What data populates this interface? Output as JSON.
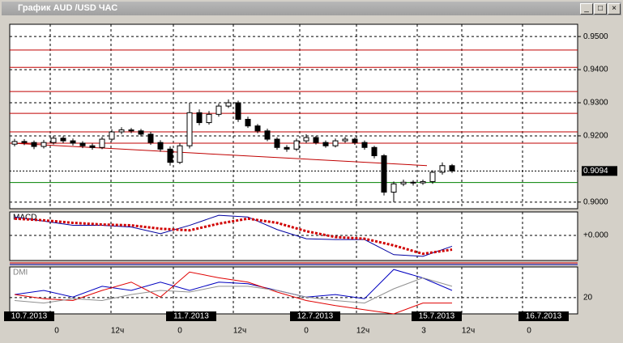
{
  "window_title": "График AUD /USD ЧАС",
  "chart_data": {
    "type": "candlestick",
    "open": [
      0.9175,
      0.9183,
      0.918,
      0.9168,
      0.918,
      0.9193,
      0.9185,
      0.9178,
      0.917,
      0.9165,
      0.919,
      0.9212,
      0.9218,
      0.9215,
      0.9205,
      0.918,
      0.916,
      0.912,
      0.917,
      0.927,
      0.924,
      0.9265,
      0.929,
      0.93,
      0.925,
      0.923,
      0.9215,
      0.919,
      0.9165,
      0.916,
      0.9185,
      0.9195,
      0.918,
      0.917,
      0.9185,
      0.919,
      0.918,
      0.9165,
      0.914,
      0.903,
      0.9055,
      0.906,
      0.9058,
      0.9062,
      0.909,
      0.911
    ],
    "high": [
      0.9191,
      0.919,
      0.9186,
      0.9188,
      0.92,
      0.9199,
      0.9192,
      0.9184,
      0.9177,
      0.9197,
      0.922,
      0.9226,
      0.9224,
      0.9221,
      0.9212,
      0.9187,
      0.9168,
      0.9178,
      0.93,
      0.928,
      0.9275,
      0.9298,
      0.931,
      0.9306,
      0.9258,
      0.9236,
      0.9222,
      0.9196,
      0.9172,
      0.9192,
      0.9205,
      0.92,
      0.9186,
      0.9192,
      0.9197,
      0.9195,
      0.9186,
      0.917,
      0.9145,
      0.9062,
      0.9068,
      0.9066,
      0.9068,
      0.9096,
      0.912,
      0.9115
    ],
    "low": [
      0.9168,
      0.9172,
      0.916,
      0.9162,
      0.9174,
      0.9178,
      0.9171,
      0.9163,
      0.9158,
      0.916,
      0.9184,
      0.9205,
      0.9208,
      0.9198,
      0.9173,
      0.9152,
      0.911,
      0.9115,
      0.9162,
      0.9232,
      0.9234,
      0.9258,
      0.9284,
      0.9242,
      0.9224,
      0.9208,
      0.9184,
      0.9158,
      0.9152,
      0.9154,
      0.9178,
      0.9174,
      0.9164,
      0.9165,
      0.9179,
      0.9173,
      0.9158,
      0.9132,
      0.902,
      0.9,
      0.9048,
      0.905,
      0.9052,
      0.9055,
      0.9083,
      0.9088
    ],
    "close": [
      0.9183,
      0.918,
      0.9168,
      0.918,
      0.9193,
      0.9185,
      0.9178,
      0.917,
      0.9165,
      0.919,
      0.9212,
      0.9218,
      0.9215,
      0.9205,
      0.918,
      0.916,
      0.912,
      0.917,
      0.927,
      0.924,
      0.9265,
      0.929,
      0.93,
      0.925,
      0.923,
      0.9215,
      0.919,
      0.9165,
      0.916,
      0.9185,
      0.9195,
      0.918,
      0.917,
      0.9185,
      0.919,
      0.918,
      0.9165,
      0.914,
      0.903,
      0.9055,
      0.906,
      0.9058,
      0.9062,
      0.909,
      0.911,
      0.9094
    ],
    "ylim": [
      0.898,
      0.9537
    ],
    "yticks": [
      {
        "value": 0.95,
        "label": "0.9500"
      },
      {
        "value": 0.94,
        "label": "0.9400"
      },
      {
        "value": 0.93,
        "label": "0.9300"
      },
      {
        "value": 0.92,
        "label": "0.9200"
      },
      {
        "value": 0.9,
        "label": "0.9000"
      }
    ],
    "last_price": {
      "value": 0.9094,
      "label": "0.9094"
    },
    "levels": [
      0.9459,
      0.9407,
      0.9334,
      0.9268,
      0.9212,
      0.9178
    ],
    "support_level": 0.9059,
    "trend_line": [
      0.9178,
      0.911
    ],
    "dates": [
      "10.7.2013",
      "11.7.2013",
      "12.7.2013",
      "15.7.2013",
      "16.7.2013"
    ],
    "hours": [
      "0",
      "12ч",
      "0",
      "12ч",
      "0",
      "12ч",
      "3",
      "12ч",
      "0"
    ],
    "macd": {
      "label": "MACD",
      "ylim": [
        -0.003,
        0.0028
      ],
      "yticks": [
        {
          "value": 0,
          "label": "+0.000"
        }
      ],
      "series": [
        {
          "color": "#0000a0",
          "values": [
            0.0022,
            0.0017,
            0.0012,
            0.0012,
            0.001,
            0.0002,
            0.0012,
            0.0024,
            0.0022,
            0.0007,
            -0.0004,
            -0.0005,
            -0.0005,
            -0.0023,
            -0.0025,
            -0.0013
          ]
        },
        {
          "color": "#d00000",
          "values": [
            0.002,
            0.0018,
            0.0015,
            0.0013,
            0.0012,
            0.0008,
            0.0006,
            0.0014,
            0.002,
            0.0015,
            0.0005,
            -0.0002,
            -0.0004,
            -0.0012,
            -0.0022,
            -0.0017
          ]
        }
      ]
    },
    "dmi": {
      "label": "DMI",
      "ylim": [
        11,
        37
      ],
      "yticks": [
        20
      ],
      "series": [
        {
          "color": "#0000c0",
          "values": [
            21.7,
            24.0,
            20.3,
            26.3,
            24.0,
            28.6,
            24.0,
            28.6,
            27.7,
            24.0,
            20.3,
            21.7,
            19.4,
            35.6,
            30.9,
            24.0
          ]
        },
        {
          "color": "#e00000",
          "values": [
            21.7,
            19.4,
            18.4,
            24.0,
            28.6,
            20.3,
            34.2,
            31.0,
            28.6,
            23.1,
            18.4,
            15.6,
            13.3,
            11.0,
            17.0,
            17.0
          ]
        },
        {
          "color": "#909090",
          "values": [
            18.4,
            17.0,
            19.4,
            18.4,
            21.7,
            24.0,
            23.1,
            26.3,
            26.3,
            24.0,
            20.3,
            18.4,
            17.0,
            24.9,
            31.0,
            26.3
          ]
        }
      ]
    }
  }
}
